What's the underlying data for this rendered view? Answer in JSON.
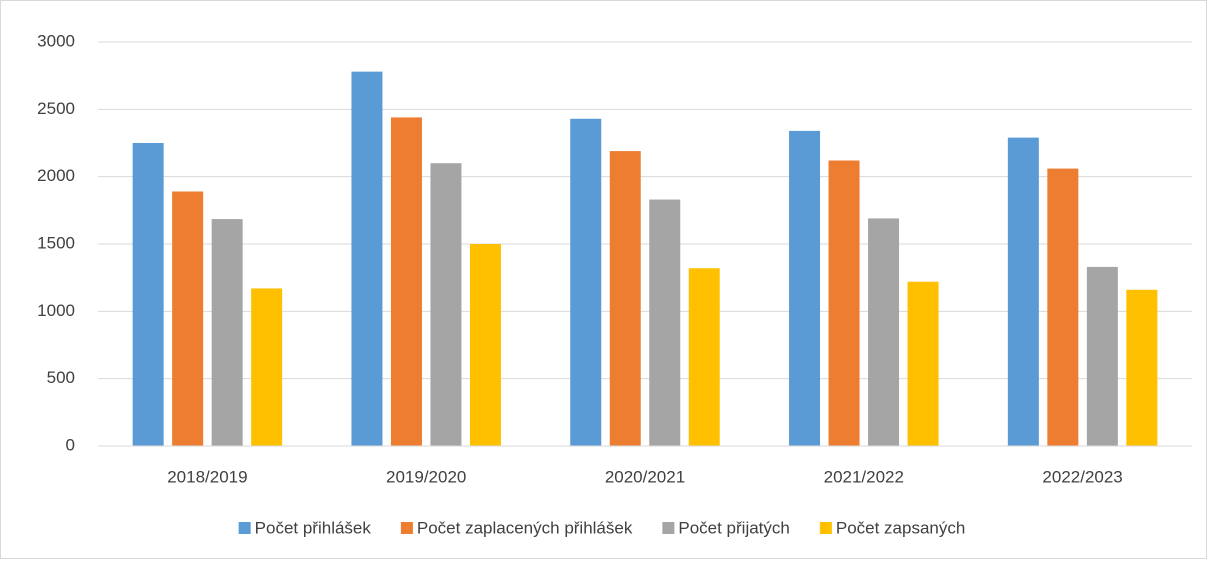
{
  "chart_data": {
    "type": "bar",
    "categories": [
      "2018/2019",
      "2019/2020",
      "2020/2021",
      "2021/2022",
      "2022/2023"
    ],
    "series": [
      {
        "name": "Počet přihlášek",
        "color": "#5b9bd5",
        "values": [
          2250,
          2780,
          2430,
          2340,
          2290
        ]
      },
      {
        "name": "Počet zaplacených přihlášek",
        "color": "#ed7d31",
        "values": [
          1890,
          2440,
          2190,
          2120,
          2060
        ]
      },
      {
        "name": "Počet přijatých",
        "color": "#a5a5a5",
        "values": [
          1685,
          2100,
          1830,
          1690,
          1330
        ]
      },
      {
        "name": "Počet zapsaných",
        "color": "#ffc000",
        "values": [
          1170,
          1500,
          1320,
          1220,
          1160
        ]
      }
    ],
    "ylim": [
      0,
      3000
    ],
    "yticks": [
      0,
      500,
      1000,
      1500,
      2000,
      2500,
      3000
    ],
    "grid": true,
    "legend": "bottom"
  }
}
